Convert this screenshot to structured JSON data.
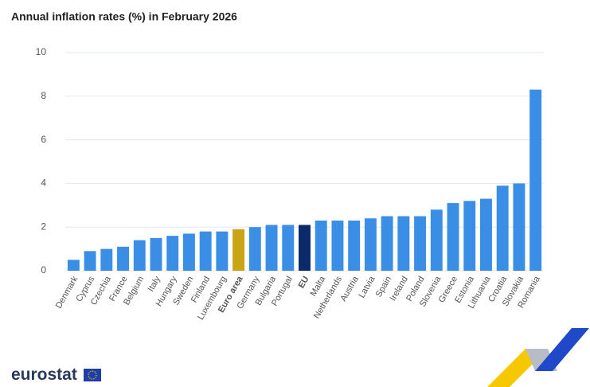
{
  "chart_data": {
    "type": "bar",
    "title": "Annual inflation rates (%) in February 2026",
    "categories": [
      "Denmark",
      "Cyprus",
      "Czechia",
      "France",
      "Belgium",
      "Italy",
      "Hungary",
      "Sweden",
      "Finland",
      "Luxembourg",
      "Euro area",
      "Germany",
      "Bulgaria",
      "Portugal",
      "EU",
      "Malta",
      "Netherlands",
      "Austria",
      "Latvia",
      "Spain",
      "Ireland",
      "Poland",
      "Slovenia",
      "Greece",
      "Estonia",
      "Lithuania",
      "Croatia",
      "Slovakia",
      "Romania"
    ],
    "values": [
      0.5,
      0.9,
      1.0,
      1.1,
      1.4,
      1.5,
      1.6,
      1.7,
      1.8,
      1.8,
      1.9,
      2.0,
      2.1,
      2.1,
      2.1,
      2.3,
      2.3,
      2.3,
      2.4,
      2.5,
      2.5,
      2.5,
      2.8,
      3.1,
      3.2,
      3.3,
      3.9,
      4.0,
      8.3
    ],
    "color": "#3a8ee6",
    "colors": [
      "#3a8ee6",
      "#3a8ee6",
      "#3a8ee6",
      "#3a8ee6",
      "#3a8ee6",
      "#3a8ee6",
      "#3a8ee6",
      "#3a8ee6",
      "#3a8ee6",
      "#3a8ee6",
      "#c9a414",
      "#3a8ee6",
      "#3a8ee6",
      "#3a8ee6",
      "#0b2a6b",
      "#3a8ee6",
      "#3a8ee6",
      "#3a8ee6",
      "#3a8ee6",
      "#3a8ee6",
      "#3a8ee6",
      "#3a8ee6",
      "#3a8ee6",
      "#3a8ee6",
      "#3a8ee6",
      "#3a8ee6",
      "#3a8ee6",
      "#3a8ee6",
      "#3a8ee6"
    ],
    "ylim": [
      0,
      10
    ],
    "yticks": [
      0,
      2,
      4,
      6,
      8,
      10
    ],
    "grid": true
  },
  "logo": "eurostat"
}
